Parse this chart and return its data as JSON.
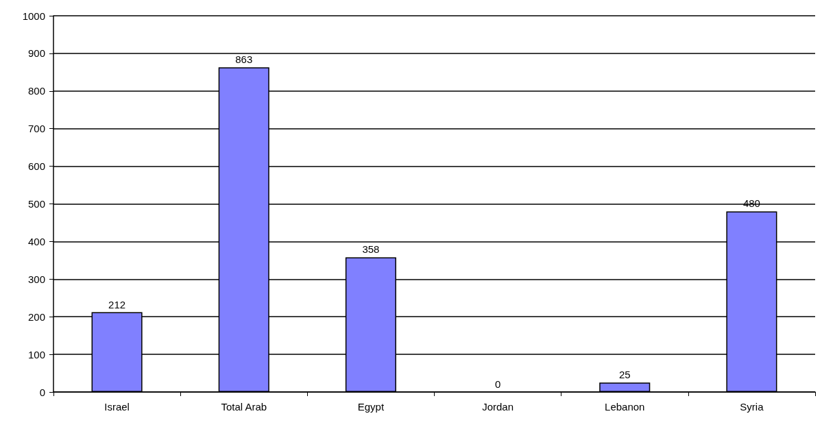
{
  "chart_data": {
    "type": "bar",
    "categories": [
      "Israel",
      "Total Arab",
      "Egypt",
      "Jordan",
      "Lebanon",
      "Syria"
    ],
    "values": [
      212,
      863,
      358,
      0,
      25,
      480
    ],
    "color": "#8080ff",
    "ylim": [
      0,
      1000
    ],
    "yticks": [
      0,
      100,
      200,
      300,
      400,
      500,
      600,
      700,
      800,
      900,
      1000
    ],
    "grid": "y",
    "data_labels": true
  }
}
